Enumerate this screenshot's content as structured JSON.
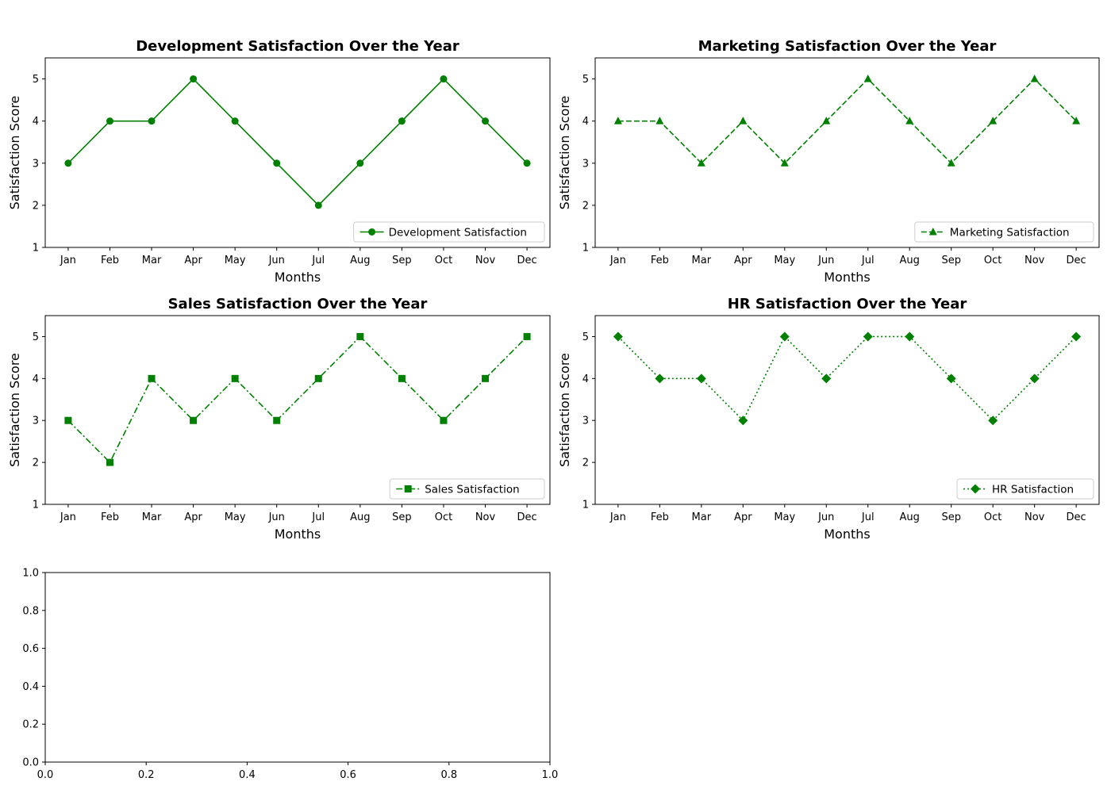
{
  "chart_data": [
    {
      "type": "line",
      "title": "Development Satisfaction Over the Year",
      "xlabel": "Months",
      "ylabel": "Satisfaction Score",
      "categories": [
        "Jan",
        "Feb",
        "Mar",
        "Apr",
        "May",
        "Jun",
        "Jul",
        "Aug",
        "Sep",
        "Oct",
        "Nov",
        "Dec"
      ],
      "ylim": [
        1,
        5.5
      ],
      "yticks": [
        1,
        2,
        3,
        4,
        5
      ],
      "series": [
        {
          "name": "Development Satisfaction",
          "values": [
            3,
            4,
            4,
            5,
            4,
            3,
            2,
            3,
            4,
            5,
            4,
            3
          ],
          "color": "#008000",
          "linestyle": "solid",
          "marker": "circle"
        }
      ],
      "legend": "lower-right"
    },
    {
      "type": "line",
      "title": "Marketing Satisfaction Over the Year",
      "xlabel": "Months",
      "ylabel": "Satisfaction Score",
      "categories": [
        "Jan",
        "Feb",
        "Mar",
        "Apr",
        "May",
        "Jun",
        "Jul",
        "Aug",
        "Sep",
        "Oct",
        "Nov",
        "Dec"
      ],
      "ylim": [
        1,
        5.5
      ],
      "yticks": [
        1,
        2,
        3,
        4,
        5
      ],
      "series": [
        {
          "name": "Marketing Satisfaction",
          "values": [
            4,
            4,
            3,
            4,
            3,
            4,
            5,
            4,
            3,
            4,
            5,
            4
          ],
          "color": "#008000",
          "linestyle": "dashed",
          "marker": "triangle"
        }
      ],
      "legend": "lower-right"
    },
    {
      "type": "line",
      "title": "Sales Satisfaction Over the Year",
      "xlabel": "Months",
      "ylabel": "Satisfaction Score",
      "categories": [
        "Jan",
        "Feb",
        "Mar",
        "Apr",
        "May",
        "Jun",
        "Jul",
        "Aug",
        "Sep",
        "Oct",
        "Nov",
        "Dec"
      ],
      "ylim": [
        1,
        5.5
      ],
      "yticks": [
        1,
        2,
        3,
        4,
        5
      ],
      "series": [
        {
          "name": "Sales Satisfaction",
          "values": [
            3,
            2,
            4,
            3,
            4,
            3,
            4,
            5,
            4,
            3,
            4,
            5
          ],
          "color": "#008000",
          "linestyle": "dashdot",
          "marker": "square"
        }
      ],
      "legend": "lower-right"
    },
    {
      "type": "line",
      "title": "HR Satisfaction Over the Year",
      "xlabel": "Months",
      "ylabel": "Satisfaction Score",
      "categories": [
        "Jan",
        "Feb",
        "Mar",
        "Apr",
        "May",
        "Jun",
        "Jul",
        "Aug",
        "Sep",
        "Oct",
        "Nov",
        "Dec"
      ],
      "ylim": [
        1,
        5.5
      ],
      "yticks": [
        1,
        2,
        3,
        4,
        5
      ],
      "series": [
        {
          "name": "HR Satisfaction",
          "values": [
            5,
            4,
            4,
            3,
            5,
            4,
            5,
            5,
            4,
            3,
            4,
            5
          ],
          "color": "#008000",
          "linestyle": "dotted",
          "marker": "diamond"
        }
      ],
      "legend": "lower-right"
    },
    {
      "type": "empty",
      "title": "",
      "xlabel": "",
      "ylabel": "",
      "xlim": [
        0,
        1
      ],
      "ylim": [
        0,
        1
      ],
      "xticks": [
        0,
        0.2,
        0.4,
        0.6,
        0.8,
        1
      ],
      "yticks": [
        0,
        0.2,
        0.4,
        0.6,
        0.8,
        1
      ],
      "xtick_labels": [
        "0.0",
        "0.2",
        "0.4",
        "0.6",
        "0.8",
        "1.0"
      ],
      "ytick_labels": [
        "0.0",
        "0.2",
        "0.4",
        "0.6",
        "0.8",
        "1.0"
      ]
    }
  ]
}
